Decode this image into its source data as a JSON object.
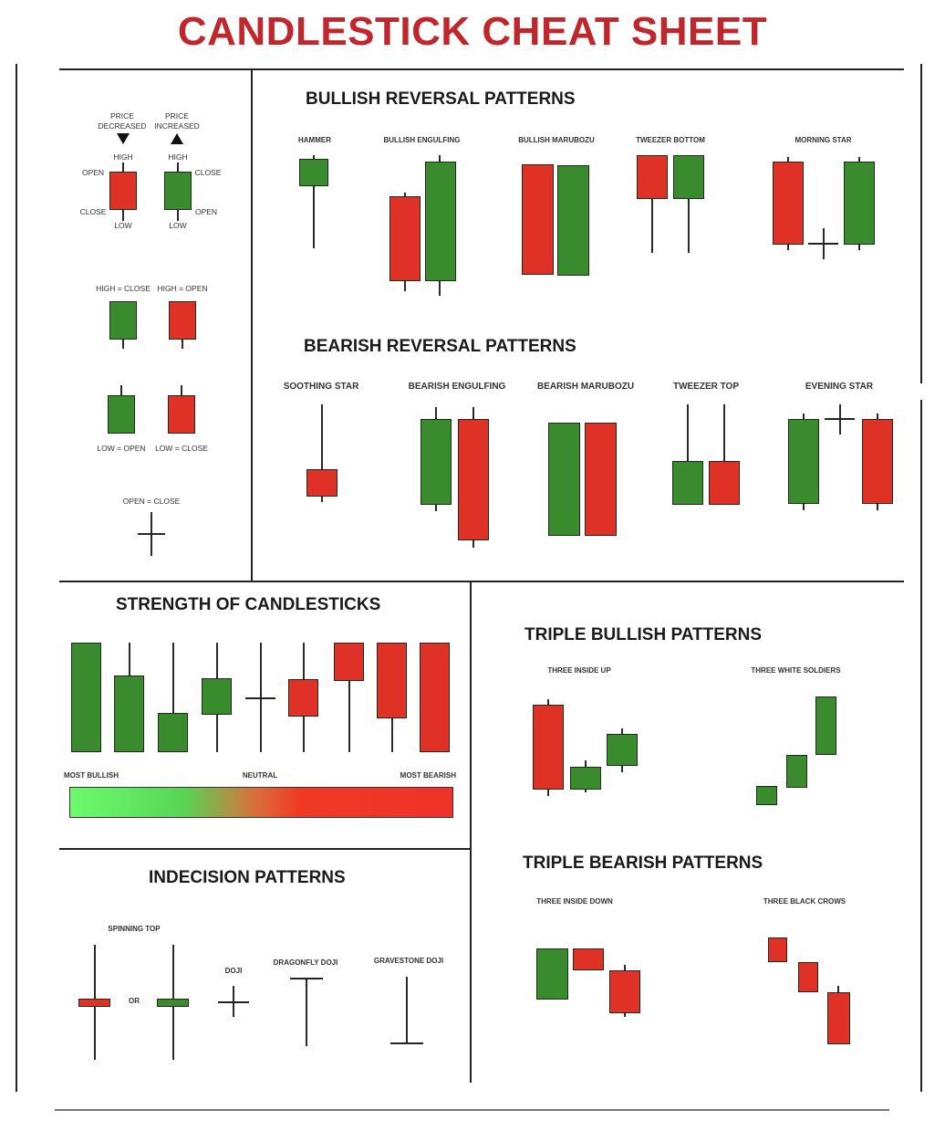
{
  "title": "CANDLESTICK CHEAT SHEET",
  "legend": {
    "bearish_top": "PRICE\nDECREASED",
    "bullish_top": "PRICE\nINCREASED",
    "high": "HIGH",
    "low": "LOW",
    "open": "OPEN",
    "close": "CLOSE",
    "high_close": "HIGH = CLOSE",
    "high_open": "HIGH = OPEN",
    "low_open": "LOW = OPEN",
    "low_close": "LOW = CLOSE",
    "open_close": "OPEN = CLOSE"
  },
  "bullish_reversal": {
    "title": "BULLISH REVERSAL PATTERNS",
    "patterns": [
      "HAMMER",
      "BULLISH ENGULFING",
      "BULLISH MARUBOZU",
      "TWEEZER BOTTOM",
      "MORNING STAR"
    ]
  },
  "bearish_reversal": {
    "title": "BEARISH REVERSAL PATTERNS",
    "patterns": [
      "SOOTHING STAR",
      "BEARISH ENGULFING",
      "BEARISH MARUBOZU",
      "TWEEZER TOP",
      "EVENING STAR"
    ]
  },
  "strength": {
    "title": "STRENGTH OF CANDLESTICKS",
    "most_bullish": "MOST BULLISH",
    "neutral": "NEUTRAL",
    "most_bearish": "MOST BEARISH"
  },
  "triple_bullish": {
    "title": "TRIPLE BULLISH PATTERNS",
    "patterns": [
      "THREE INSIDE UP",
      "THREE WHITE SOLDIERS"
    ]
  },
  "triple_bearish": {
    "title": "TRIPLE BEARISH PATTERNS",
    "patterns": [
      "THREE INSIDE DOWN",
      "THREE BLACK CROWS"
    ]
  },
  "indecision": {
    "title": "INDECISION PATTERNS",
    "spinning_top": "SPINNING TOP",
    "or": "OR",
    "doji": "DOJI",
    "dragonfly": "DRAGONFLY DOJI",
    "gravestone": "GRAVESTONE DOJI"
  },
  "colors": {
    "bullish": "#3a8a2e",
    "bearish": "#e03127",
    "title": "#c0272d"
  }
}
